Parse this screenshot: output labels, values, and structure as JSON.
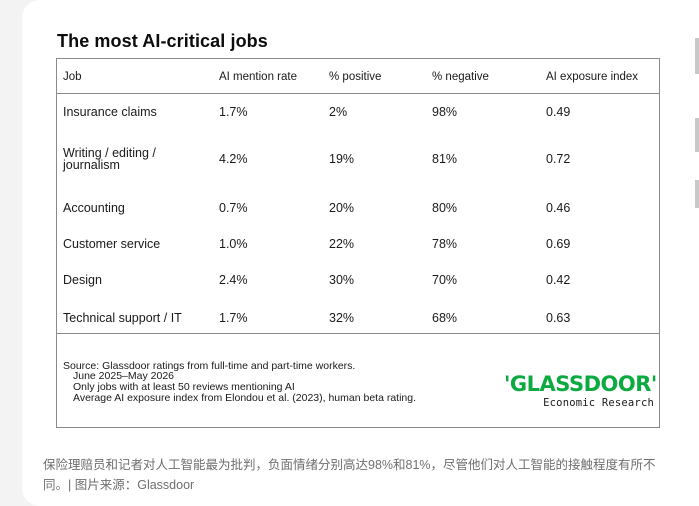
{
  "title": "The most AI-critical jobs",
  "table": {
    "headers": [
      "Job",
      "AI mention rate",
      "% positive",
      "% negative",
      "AI exposure index"
    ],
    "rows": [
      {
        "job": "Insurance claims",
        "mention_rate": "1.7%",
        "positive": "2%",
        "negative": "98%",
        "exposure": "0.49"
      },
      {
        "job_line1": "Writing / editing /",
        "job_line2": "journalism",
        "mention_rate": "4.2%",
        "positive": "19%",
        "negative": "81%",
        "exposure": "0.72"
      },
      {
        "job": "Accounting",
        "mention_rate": "0.7%",
        "positive": "20%",
        "negative": "80%",
        "exposure": "0.46"
      },
      {
        "job": "Customer service",
        "mention_rate": "1.0%",
        "positive": "22%",
        "negative": "78%",
        "exposure": "0.69"
      },
      {
        "job": "Design",
        "mention_rate": "2.4%",
        "positive": "30%",
        "negative": "70%",
        "exposure": "0.42"
      },
      {
        "job": "Technical support / IT",
        "mention_rate": "1.7%",
        "positive": "32%",
        "negative": "68%",
        "exposure": "0.63"
      }
    ]
  },
  "source": {
    "line1": "Source: Glassdoor ratings from full-time and part-time workers.",
    "line2": "June 2025–May 2026",
    "line3": "Only jobs with at least 50 reviews mentioning AI",
    "line4": "Average AI exposure index from Elondou et al. (2023), human beta rating."
  },
  "logo": {
    "name": "'GLASSDOOR'",
    "subtitle": "Economic Research",
    "color": "#0caa41"
  },
  "caption": "保险理赔员和记者对人工智能最为批判，负面情绪分别高达98%和81%，尽管他们对人工智能的接触程度有所不同。| 图片来源：Glassdoor"
}
